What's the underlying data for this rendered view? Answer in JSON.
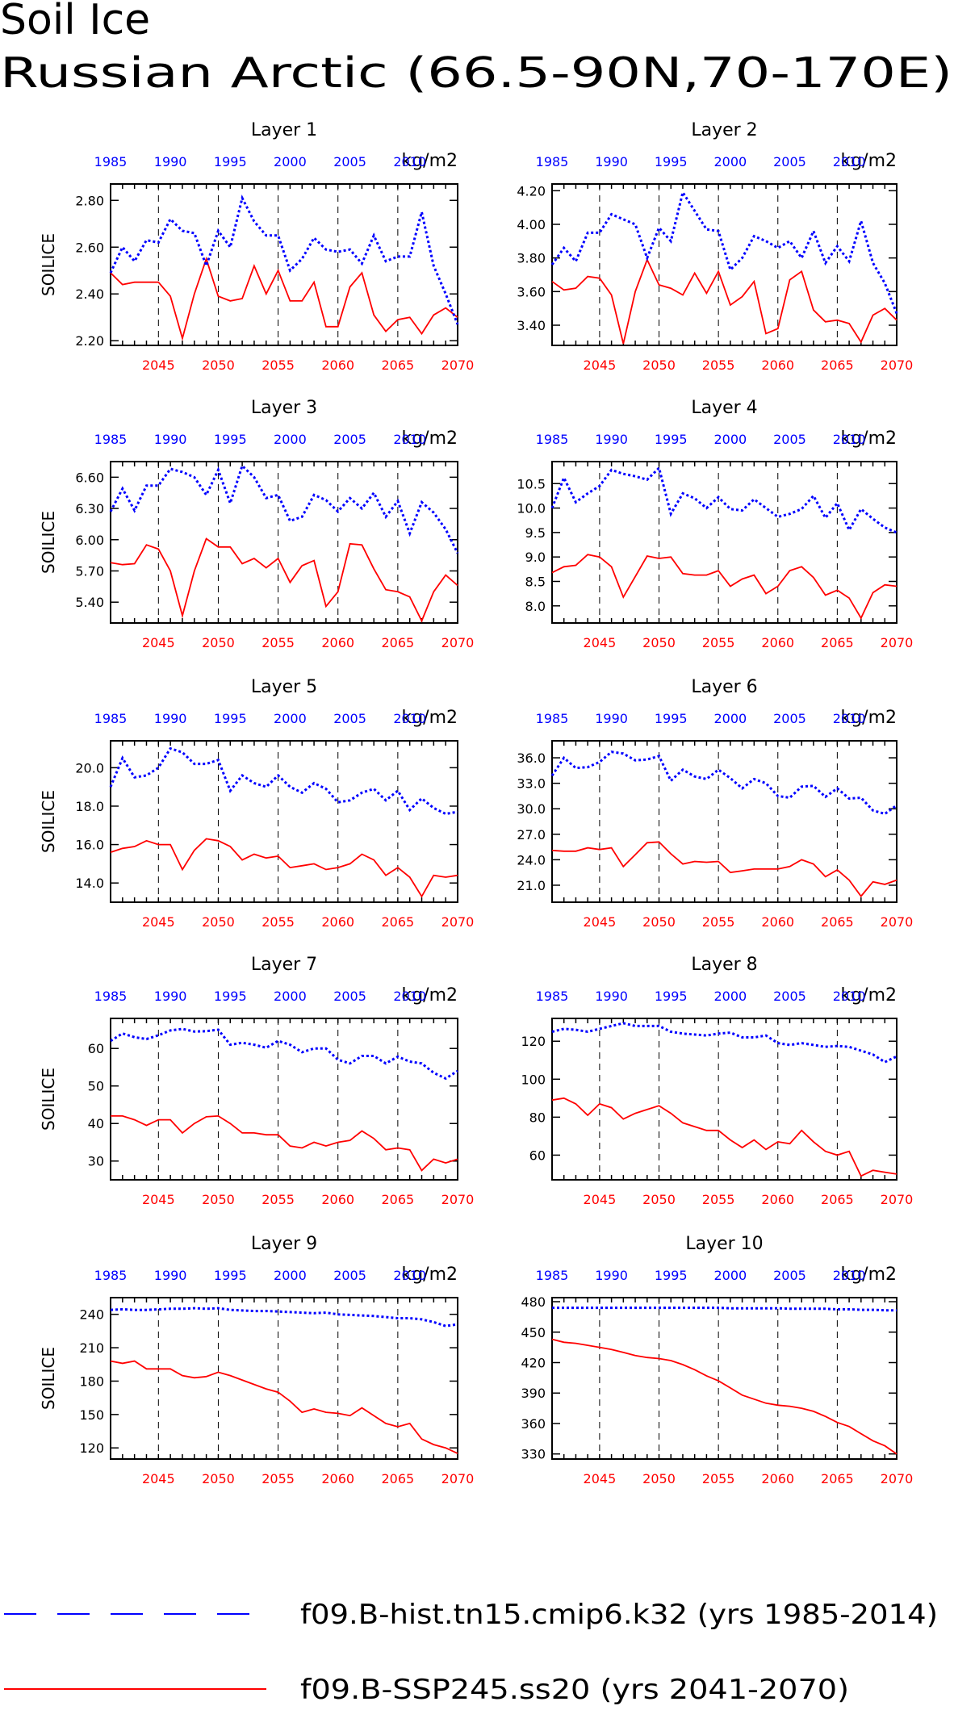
{
  "page": {
    "title_line1": "Soil Ice",
    "title_line2": "Russian Arctic (66.5-90N,70-170E)"
  },
  "legend": {
    "hist_label": "f09.B-hist.tn15.cmip6.k32 (yrs 1985-2014)",
    "ssp_label": "f09.B-SSP245.ss20 (yrs 2041-2070)"
  },
  "colors": {
    "hist": "#0000ff",
    "ssp": "#ff0000",
    "axis": "#000000"
  },
  "chart_data": [
    {
      "type": "line",
      "title": "Layer 1",
      "ylabel": "SOILICE",
      "units": "kg/m2",
      "ylim": [
        2.18,
        2.87
      ],
      "yticks": [
        "2.20",
        "2.40",
        "2.60",
        "2.80"
      ],
      "ytick_values": [
        2.2,
        2.4,
        2.6,
        2.8
      ],
      "x_top": [
        "1985",
        "1990",
        "1995",
        "2000",
        "2005",
        "2010"
      ],
      "x_bottom": [
        "2045",
        "2050",
        "2055",
        "2060",
        "2065",
        "2070"
      ],
      "series": [
        {
          "values": [
            2.49,
            2.6,
            2.54,
            2.63,
            2.62,
            2.72,
            2.67,
            2.66,
            2.52,
            2.67,
            2.6,
            2.81,
            2.71,
            2.65,
            2.65,
            2.5,
            2.55,
            2.64,
            2.59,
            2.58,
            2.59,
            2.53,
            2.65,
            2.54,
            2.56,
            2.56,
            2.75,
            2.52,
            2.4,
            2.27
          ]
        },
        {
          "values": [
            2.49,
            2.44,
            2.45,
            2.45,
            2.45,
            2.39,
            2.21,
            2.4,
            2.55,
            2.39,
            2.37,
            2.38,
            2.52,
            2.4,
            2.5,
            2.37,
            2.37,
            2.45,
            2.26,
            2.26,
            2.43,
            2.49,
            2.31,
            2.24,
            2.29,
            2.3,
            2.23,
            2.31,
            2.34,
            2.3
          ]
        }
      ]
    },
    {
      "type": "line",
      "title": "Layer 2",
      "ylabel": "",
      "units": "kg/m2",
      "ylim": [
        3.28,
        4.24
      ],
      "yticks": [
        "3.40",
        "3.60",
        "3.80",
        "4.00",
        "4.20"
      ],
      "ytick_values": [
        3.4,
        3.6,
        3.8,
        4.0,
        4.2
      ],
      "x_top": [
        "1985",
        "1990",
        "1995",
        "2000",
        "2005",
        "2010"
      ],
      "x_bottom": [
        "2045",
        "2050",
        "2055",
        "2060",
        "2065",
        "2070"
      ],
      "series": [
        {
          "values": [
            3.76,
            3.86,
            3.78,
            3.95,
            3.95,
            4.06,
            4.03,
            4.0,
            3.8,
            3.98,
            3.9,
            4.19,
            4.08,
            3.97,
            3.96,
            3.73,
            3.8,
            3.93,
            3.9,
            3.86,
            3.9,
            3.8,
            3.96,
            3.77,
            3.87,
            3.78,
            4.02,
            3.77,
            3.65,
            3.47
          ]
        },
        {
          "values": [
            3.66,
            3.61,
            3.62,
            3.69,
            3.68,
            3.58,
            3.29,
            3.6,
            3.79,
            3.64,
            3.62,
            3.58,
            3.71,
            3.59,
            3.72,
            3.52,
            3.57,
            3.66,
            3.35,
            3.38,
            3.67,
            3.72,
            3.49,
            3.42,
            3.43,
            3.41,
            3.3,
            3.46,
            3.5,
            3.43
          ]
        }
      ]
    },
    {
      "type": "line",
      "title": "Layer 3",
      "ylabel": "SOILICE",
      "units": "kg/m2",
      "ylim": [
        5.2,
        6.75
      ],
      "yticks": [
        "5.40",
        "5.70",
        "6.00",
        "6.30",
        "6.60"
      ],
      "ytick_values": [
        5.4,
        5.7,
        6.0,
        6.3,
        6.6
      ],
      "x_top": [
        "1985",
        "1990",
        "1995",
        "2000",
        "2005",
        "2010"
      ],
      "x_bottom": [
        "2045",
        "2050",
        "2055",
        "2060",
        "2065",
        "2070"
      ],
      "series": [
        {
          "values": [
            6.27,
            6.49,
            6.28,
            6.52,
            6.52,
            6.68,
            6.65,
            6.6,
            6.43,
            6.67,
            6.35,
            6.71,
            6.6,
            6.4,
            6.43,
            6.18,
            6.22,
            6.43,
            6.38,
            6.27,
            6.4,
            6.3,
            6.45,
            6.22,
            6.37,
            6.06,
            6.36,
            6.26,
            6.1,
            5.87
          ]
        },
        {
          "values": [
            5.78,
            5.76,
            5.77,
            5.95,
            5.91,
            5.7,
            5.27,
            5.7,
            6.01,
            5.93,
            5.93,
            5.77,
            5.82,
            5.73,
            5.82,
            5.59,
            5.75,
            5.8,
            5.36,
            5.5,
            5.96,
            5.95,
            5.72,
            5.52,
            5.5,
            5.45,
            5.22,
            5.5,
            5.66,
            5.56
          ]
        }
      ]
    },
    {
      "type": "line",
      "title": "Layer 4",
      "ylabel": "",
      "units": "kg/m2",
      "ylim": [
        7.65,
        10.95
      ],
      "yticks": [
        "8.0",
        "8.5",
        "9.0",
        "9.5",
        "10.0",
        "10.5"
      ],
      "ytick_values": [
        8.0,
        8.5,
        9.0,
        9.5,
        10.0,
        10.5
      ],
      "x_top": [
        "1985",
        "1990",
        "1995",
        "2000",
        "2005",
        "2010"
      ],
      "x_bottom": [
        "2045",
        "2050",
        "2055",
        "2060",
        "2065",
        "2070"
      ],
      "series": [
        {
          "values": [
            10.0,
            10.62,
            10.12,
            10.3,
            10.45,
            10.78,
            10.7,
            10.65,
            10.58,
            10.82,
            9.88,
            10.3,
            10.2,
            10.0,
            10.22,
            9.98,
            9.95,
            10.18,
            10.0,
            9.82,
            9.88,
            9.98,
            10.25,
            9.8,
            10.1,
            9.55,
            9.98,
            9.78,
            9.6,
            9.5
          ]
        },
        {
          "values": [
            8.68,
            8.8,
            8.83,
            9.05,
            9.0,
            8.8,
            8.18,
            8.6,
            9.02,
            8.97,
            9.0,
            8.66,
            8.63,
            8.63,
            8.72,
            8.4,
            8.55,
            8.63,
            8.25,
            8.4,
            8.72,
            8.8,
            8.58,
            8.22,
            8.32,
            8.16,
            7.75,
            8.27,
            8.43,
            8.4
          ]
        }
      ]
    },
    {
      "type": "line",
      "title": "Layer 5",
      "ylabel": "SOILICE",
      "units": "kg/m2",
      "ylim": [
        13.0,
        21.4
      ],
      "yticks": [
        "14.0",
        "16.0",
        "18.0",
        "20.0"
      ],
      "ytick_values": [
        14.0,
        16.0,
        18.0,
        20.0
      ],
      "x_top": [
        "1985",
        "1990",
        "1995",
        "2000",
        "2005",
        "2010"
      ],
      "x_bottom": [
        "2045",
        "2050",
        "2055",
        "2060",
        "2065",
        "2070"
      ],
      "series": [
        {
          "values": [
            19.0,
            20.5,
            19.5,
            19.6,
            20.0,
            21.0,
            20.8,
            20.2,
            20.2,
            20.4,
            18.8,
            19.6,
            19.2,
            19.0,
            19.6,
            19.0,
            18.7,
            19.2,
            18.9,
            18.2,
            18.3,
            18.7,
            18.9,
            18.3,
            18.8,
            17.8,
            18.4,
            17.9,
            17.6,
            17.7
          ]
        },
        {
          "values": [
            15.6,
            15.8,
            15.9,
            16.2,
            16.0,
            16.0,
            14.7,
            15.7,
            16.3,
            16.2,
            15.9,
            15.2,
            15.5,
            15.3,
            15.4,
            14.8,
            14.9,
            15.0,
            14.7,
            14.8,
            15.0,
            15.5,
            15.2,
            14.4,
            14.8,
            14.3,
            13.3,
            14.4,
            14.3,
            14.4
          ]
        }
      ]
    },
    {
      "type": "line",
      "title": "Layer 6",
      "ylabel": "",
      "units": "kg/m2",
      "ylim": [
        19.0,
        38.0
      ],
      "yticks": [
        "21.0",
        "24.0",
        "27.0",
        "30.0",
        "33.0",
        "36.0"
      ],
      "ytick_values": [
        21.0,
        24.0,
        27.0,
        30.0,
        33.0,
        36.0
      ],
      "x_top": [
        "1985",
        "1990",
        "1995",
        "2000",
        "2005",
        "2010"
      ],
      "x_bottom": [
        "2045",
        "2050",
        "2055",
        "2060",
        "2065",
        "2070"
      ],
      "series": [
        {
          "values": [
            33.9,
            36.0,
            34.8,
            34.9,
            35.5,
            36.7,
            36.5,
            35.7,
            35.8,
            36.2,
            33.3,
            34.6,
            33.8,
            33.5,
            34.6,
            33.6,
            32.4,
            33.5,
            33.0,
            31.5,
            31.3,
            32.6,
            32.7,
            31.4,
            32.4,
            31.2,
            31.3,
            29.8,
            29.4,
            30.4
          ]
        },
        {
          "values": [
            25.1,
            25.0,
            25.0,
            25.4,
            25.2,
            25.4,
            23.2,
            24.6,
            26.0,
            26.1,
            24.7,
            23.5,
            23.8,
            23.7,
            23.8,
            22.5,
            22.7,
            22.9,
            22.9,
            22.9,
            23.2,
            24.0,
            23.5,
            22.0,
            22.8,
            21.6,
            19.7,
            21.4,
            21.1,
            21.6
          ]
        }
      ]
    },
    {
      "type": "line",
      "title": "Layer 7",
      "ylabel": "SOILICE",
      "units": "kg/m2",
      "ylim": [
        25,
        68
      ],
      "yticks": [
        "30",
        "40",
        "50",
        "60"
      ],
      "ytick_values": [
        30,
        40,
        50,
        60
      ],
      "x_top": [
        "1985",
        "1990",
        "1995",
        "2000",
        "2005",
        "2010"
      ],
      "x_bottom": [
        "2045",
        "2050",
        "2055",
        "2060",
        "2065",
        "2070"
      ],
      "series": [
        {
          "values": [
            62.0,
            64.0,
            63.0,
            62.5,
            63.5,
            64.8,
            65.2,
            64.5,
            64.6,
            65.0,
            61.0,
            61.5,
            61.0,
            60.2,
            62.0,
            61.0,
            59.0,
            60.0,
            60.0,
            57.0,
            56.0,
            58.0,
            58.0,
            56.0,
            57.8,
            56.5,
            56.0,
            53.5,
            52.0,
            54.0
          ]
        },
        {
          "values": [
            42.0,
            42.0,
            41.0,
            39.5,
            41.0,
            41.0,
            37.5,
            40.0,
            41.8,
            42.0,
            40.0,
            37.5,
            37.5,
            37.0,
            37.0,
            34.0,
            33.5,
            35.0,
            34.0,
            35.0,
            35.5,
            38.0,
            36.0,
            33.0,
            33.5,
            33.0,
            27.5,
            30.5,
            29.5,
            30.5
          ]
        }
      ]
    },
    {
      "type": "line",
      "title": "Layer 8",
      "ylabel": "",
      "units": "kg/m2",
      "ylim": [
        47,
        132
      ],
      "yticks": [
        "60",
        "80",
        "100",
        "120"
      ],
      "ytick_values": [
        60,
        80,
        100,
        120
      ],
      "x_top": [
        "1985",
        "1990",
        "1995",
        "2000",
        "2005",
        "2010"
      ],
      "x_bottom": [
        "2045",
        "2050",
        "2055",
        "2060",
        "2065",
        "2070"
      ],
      "series": [
        {
          "values": [
            125,
            126.5,
            126,
            125,
            126.5,
            128,
            129.5,
            128,
            128,
            128,
            125,
            124,
            123.5,
            123,
            124,
            124.5,
            122,
            122,
            123,
            119,
            118,
            119,
            118,
            117,
            117.5,
            117,
            115,
            113,
            109,
            112
          ]
        },
        {
          "values": [
            89,
            90,
            87,
            81,
            87,
            85,
            79,
            82,
            84,
            86,
            82,
            77,
            75,
            73,
            73,
            68,
            64,
            68,
            63,
            67,
            66,
            73,
            67,
            62,
            60,
            62,
            49,
            52,
            51,
            50
          ]
        }
      ]
    },
    {
      "type": "line",
      "title": "Layer 9",
      "ylabel": "SOILICE",
      "units": "kg/m2",
      "ylim": [
        110,
        255
      ],
      "yticks": [
        "120",
        "150",
        "180",
        "210",
        "240"
      ],
      "ytick_values": [
        120,
        150,
        180,
        210,
        240
      ],
      "x_top": [
        "1985",
        "1990",
        "1995",
        "2000",
        "2005",
        "2010"
      ],
      "x_bottom": [
        "2045",
        "2050",
        "2055",
        "2060",
        "2065",
        "2070"
      ],
      "series": [
        {
          "values": [
            244,
            244.5,
            244,
            244,
            244.5,
            245,
            245,
            245.5,
            245,
            245.5,
            244,
            243.5,
            243,
            243,
            242.5,
            242,
            241.5,
            241,
            241.5,
            240,
            239.5,
            239,
            238.5,
            237.5,
            236.5,
            236.5,
            235.5,
            233,
            229.5,
            231
          ]
        },
        {
          "values": [
            198,
            196,
            198,
            191,
            191,
            191,
            185,
            183,
            184,
            188,
            185,
            181,
            177,
            173,
            170,
            162,
            152,
            155,
            152,
            151,
            149,
            156,
            149,
            142,
            139,
            142,
            128,
            123,
            120,
            115
          ]
        }
      ]
    },
    {
      "type": "line",
      "title": "Layer 10",
      "ylabel": "",
      "units": "kg/m2",
      "ylim": [
        325,
        484
      ],
      "yticks": [
        "330",
        "360",
        "390",
        "420",
        "450",
        "480"
      ],
      "ytick_values": [
        330,
        360,
        390,
        420,
        450,
        480
      ],
      "x_top": [
        "1985",
        "1990",
        "1995",
        "2000",
        "2005",
        "2010"
      ],
      "x_bottom": [
        "2045",
        "2050",
        "2055",
        "2060",
        "2065",
        "2070"
      ],
      "series": [
        {
          "values": [
            474,
            474,
            474,
            474,
            474,
            474,
            474,
            474,
            474,
            474,
            474,
            474,
            474,
            474,
            474,
            473.5,
            473.5,
            473.5,
            473.5,
            473.5,
            473,
            473,
            473,
            473,
            472.5,
            472.5,
            472,
            472,
            471.5,
            471.5
          ]
        },
        {
          "values": [
            443,
            440,
            439,
            437,
            435,
            433,
            430,
            427,
            425,
            424,
            422,
            418,
            413,
            407,
            402,
            395,
            388,
            384,
            380,
            378,
            377,
            375,
            372,
            367,
            361,
            357,
            350,
            343,
            338,
            330
          ]
        }
      ]
    }
  ]
}
